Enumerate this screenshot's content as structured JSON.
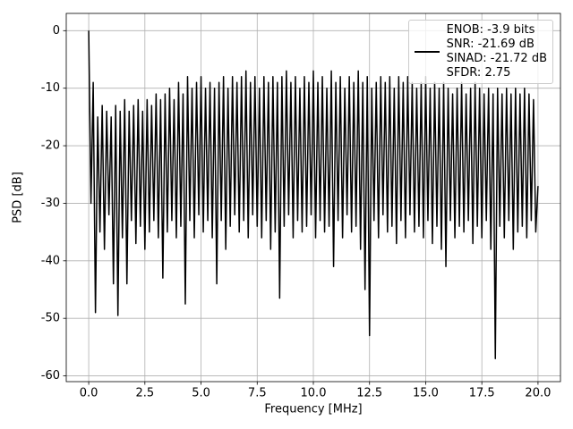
{
  "chart_data": {
    "type": "line",
    "xlabel": "Frequency [MHz]",
    "ylabel": "PSD [dB]",
    "x": [
      0,
      0.1,
      0.2,
      0.3,
      0.4,
      0.5,
      0.6,
      0.7,
      0.8,
      0.9,
      1,
      1.1,
      1.2,
      1.3,
      1.4,
      1.5,
      1.6,
      1.7,
      1.8,
      1.9,
      2,
      2.1,
      2.2,
      2.3,
      2.4,
      2.5,
      2.6,
      2.7,
      2.8,
      2.9,
      3,
      3.1,
      3.2,
      3.3,
      3.4,
      3.5,
      3.6,
      3.7,
      3.8,
      3.9,
      4,
      4.1,
      4.2,
      4.3,
      4.4,
      4.5,
      4.6,
      4.7,
      4.8,
      4.9,
      5,
      5.1,
      5.2,
      5.3,
      5.4,
      5.5,
      5.6,
      5.7,
      5.8,
      5.9,
      6,
      6.1,
      6.2,
      6.3,
      6.4,
      6.5,
      6.6,
      6.7,
      6.8,
      6.9,
      7,
      7.1,
      7.2,
      7.3,
      7.4,
      7.5,
      7.6,
      7.7,
      7.8,
      7.9,
      8,
      8.1,
      8.2,
      8.3,
      8.4,
      8.5,
      8.6,
      8.7,
      8.8,
      8.9,
      9,
      9.1,
      9.2,
      9.3,
      9.4,
      9.5,
      9.6,
      9.7,
      9.8,
      9.9,
      10,
      10.1,
      10.2,
      10.3,
      10.4,
      10.5,
      10.6,
      10.7,
      10.8,
      10.9,
      11,
      11.1,
      11.2,
      11.3,
      11.4,
      11.5,
      11.6,
      11.7,
      11.8,
      11.9,
      12,
      12.1,
      12.2,
      12.3,
      12.4,
      12.5,
      12.6,
      12.7,
      12.8,
      12.9,
      13,
      13.1,
      13.2,
      13.3,
      13.4,
      13.5,
      13.6,
      13.7,
      13.8,
      13.9,
      14,
      14.1,
      14.2,
      14.3,
      14.4,
      14.5,
      14.6,
      14.7,
      14.8,
      14.9,
      15,
      15.1,
      15.2,
      15.3,
      15.4,
      15.5,
      15.6,
      15.7,
      15.8,
      15.9,
      16,
      16.1,
      16.2,
      16.3,
      16.4,
      16.5,
      16.6,
      16.7,
      16.8,
      16.9,
      17,
      17.1,
      17.2,
      17.3,
      17.4,
      17.5,
      17.6,
      17.7,
      17.8,
      17.9,
      18,
      18.1,
      18.2,
      18.3,
      18.4,
      18.5,
      18.6,
      18.7,
      18.8,
      18.9,
      19,
      19.1,
      19.2,
      19.3,
      19.4,
      19.5,
      19.6,
      19.7,
      19.8,
      19.9,
      20
    ],
    "series": [
      {
        "name": "ENOB: -3.9 bits\nSNR: -21.69 dB\nSINAD: -21.72 dB\nSFDR: 2.75",
        "color": "#000000",
        "values": [
          0,
          -30,
          -9,
          -49,
          -15,
          -35,
          -13,
          -38,
          -14,
          -32,
          -15,
          -44,
          -13,
          -49.5,
          -14,
          -36,
          -12,
          -44,
          -14,
          -33,
          -13,
          -37,
          -12,
          -34,
          -14,
          -38,
          -12,
          -35,
          -13,
          -33,
          -11,
          -36,
          -12,
          -43,
          -11,
          -35,
          -10,
          -33,
          -12,
          -36,
          -9,
          -34,
          -11,
          -47.5,
          -8,
          -33,
          -10,
          -36,
          -9,
          -32,
          -8,
          -35,
          -10,
          -33,
          -9,
          -36,
          -10,
          -44,
          -9,
          -33,
          -8,
          -38,
          -10,
          -34,
          -8,
          -32,
          -9,
          -35,
          -8,
          -33,
          -7,
          -36,
          -9,
          -32,
          -8,
          -34,
          -10,
          -36,
          -8,
          -33,
          -9,
          -38,
          -8,
          -35,
          -9,
          -46.5,
          -8,
          -34,
          -7,
          -32,
          -9,
          -36,
          -8,
          -33,
          -10,
          -35,
          -8,
          -34,
          -9,
          -32,
          -7,
          -36,
          -9,
          -33,
          -8,
          -35,
          -10,
          -34,
          -7,
          -41,
          -9,
          -33,
          -8,
          -36,
          -10,
          -32,
          -8,
          -35,
          -9,
          -34,
          -7,
          -38,
          -9,
          -45,
          -8,
          -53,
          -10,
          -33,
          -9,
          -36,
          -8,
          -32,
          -9,
          -35,
          -8,
          -34,
          -10,
          -37,
          -8,
          -33,
          -9,
          -36,
          -8,
          -32,
          -9,
          -35,
          -10,
          -34,
          -9,
          -36,
          -8,
          -33,
          -10,
          -37,
          -9,
          -34,
          -10,
          -38,
          -9,
          -41,
          -10,
          -33,
          -11,
          -36,
          -10,
          -34,
          -9,
          -35,
          -11,
          -33,
          -10,
          -37,
          -9,
          -34,
          -10,
          -36,
          -11,
          -33,
          -10,
          -38,
          -11,
          -57,
          -10,
          -34,
          -11,
          -36,
          -10,
          -33,
          -11,
          -38,
          -10,
          -35,
          -11,
          -34,
          -10,
          -36,
          -11,
          -33,
          -12,
          -35,
          -27
        ]
      }
    ],
    "xlim": [
      -1,
      21
    ],
    "xticks": [
      {
        "value": 0,
        "label": "0.0"
      },
      2.5,
      {
        "value": 5,
        "label": "5.0"
      },
      7.5,
      {
        "value": 10,
        "label": "10.0"
      },
      12.5,
      {
        "value": 15,
        "label": "15.0"
      },
      17.5,
      {
        "value": 20,
        "label": "20.0"
      }
    ],
    "ylim": [
      -61,
      3
    ],
    "yticks": [
      -60,
      -50,
      -40,
      -30,
      -20,
      -10,
      0
    ],
    "grid": true,
    "legend": "upper right"
  }
}
